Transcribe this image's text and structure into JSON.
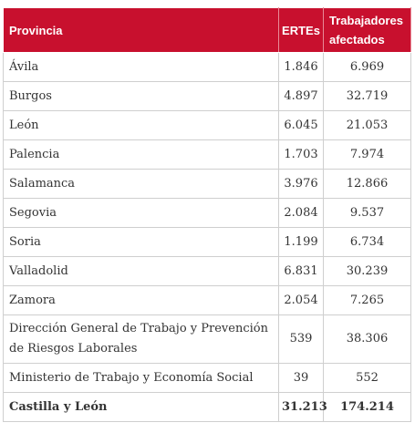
{
  "table": {
    "headers": {
      "province": "Provincia",
      "ertes": "ERTEs",
      "workers": "Trabajadores afectados"
    },
    "rows": [
      {
        "name": "Ávila",
        "ertes": "1.846",
        "workers": "6.969"
      },
      {
        "name": "Burgos",
        "ertes": "4.897",
        "workers": "32.719"
      },
      {
        "name": "León",
        "ertes": "6.045",
        "workers": "21.053"
      },
      {
        "name": "Palencia",
        "ertes": "1.703",
        "workers": "7.974"
      },
      {
        "name": "Salamanca",
        "ertes": "3.976",
        "workers": "12.866"
      },
      {
        "name": "Segovia",
        "ertes": "2.084",
        "workers": "9.537"
      },
      {
        "name": "Soria",
        "ertes": "1.199",
        "workers": "6.734"
      },
      {
        "name": "Valladolid",
        "ertes": "6.831",
        "workers": "30.239"
      },
      {
        "name": "Zamora",
        "ertes": "2.054",
        "workers": "7.265"
      },
      {
        "name": "Dirección General de Trabajo y Prevención de Riesgos Laborales",
        "ertes": "539",
        "workers": "38.306"
      },
      {
        "name": "Ministerio de Trabajo y Economía Social",
        "ertes": "39",
        "workers": "552"
      }
    ],
    "total": {
      "name": "Castilla y León",
      "ertes": "31.213",
      "workers": "174.214"
    }
  },
  "colors": {
    "header_bg": "#c8102e",
    "header_text": "#ffffff",
    "border": "#cfcfcf",
    "body_text": "#333333"
  }
}
